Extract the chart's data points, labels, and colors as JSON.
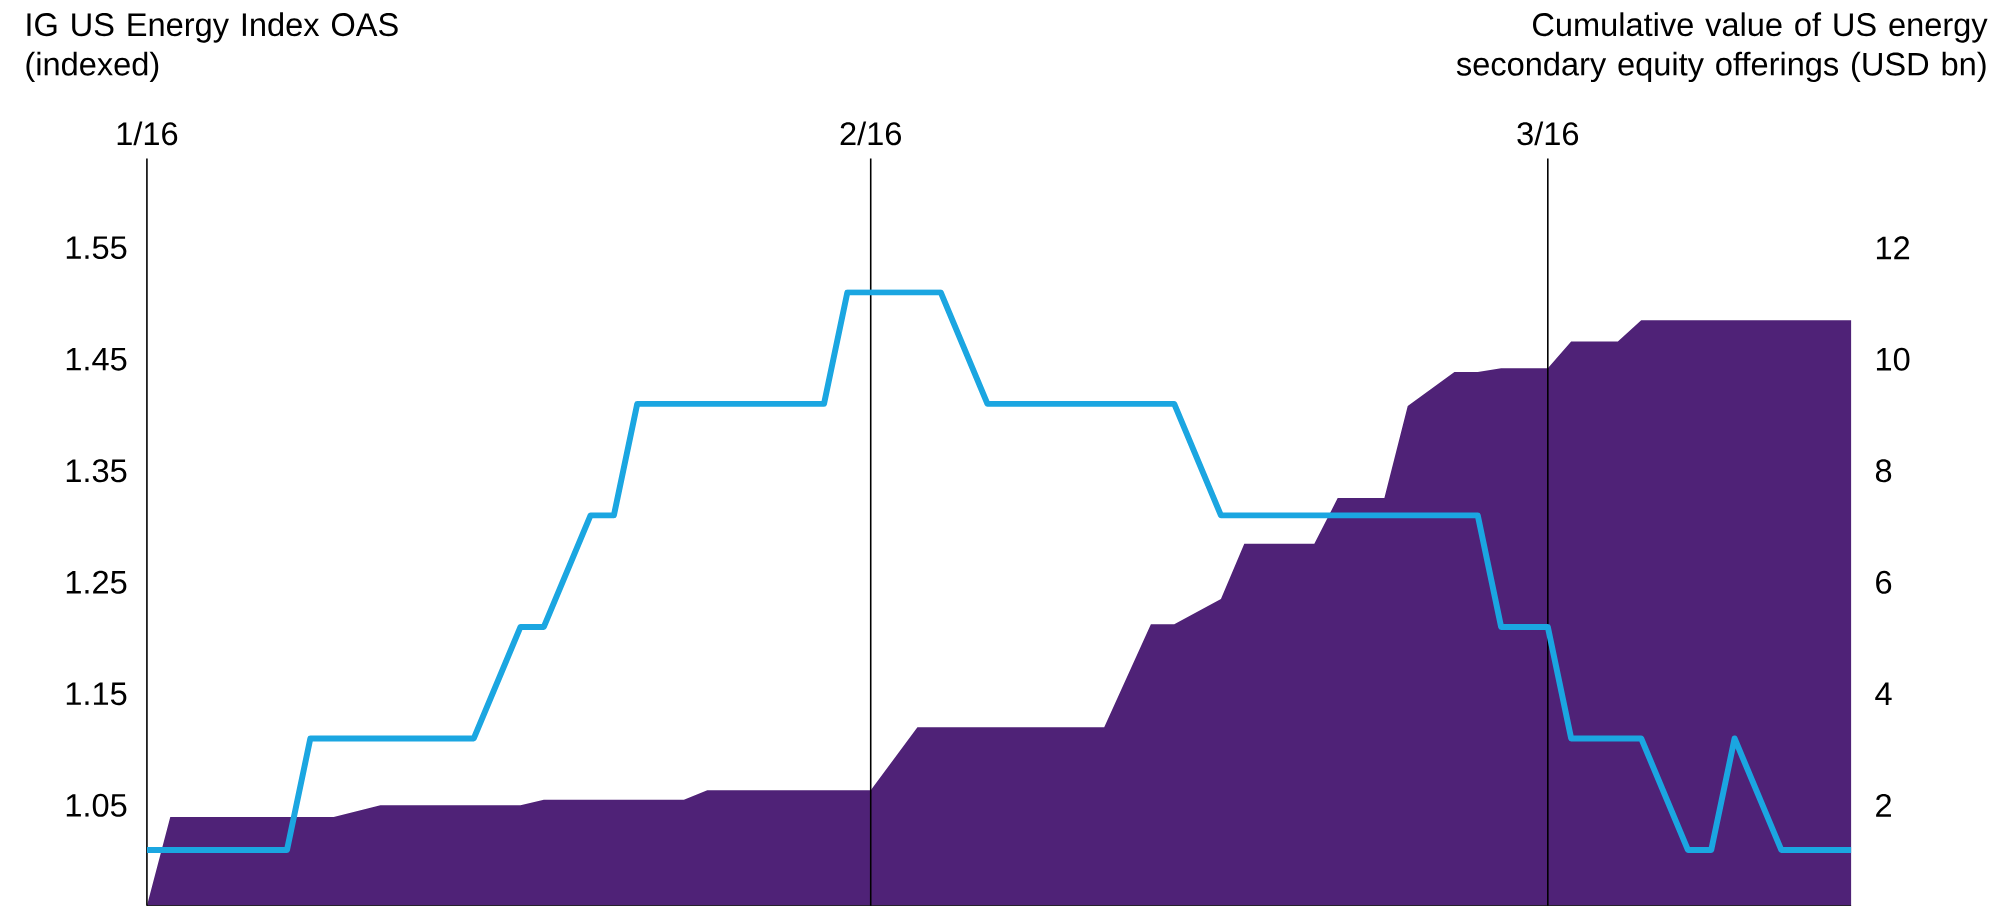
{
  "chart_data": {
    "type": "line",
    "ylabel": "IG US Energy Index OAS (indexed)",
    "y2label": "Cumulative value of US energy secondary equity offerings (USD bn)",
    "xlim": [
      "2016-01-01",
      "2016-03-14"
    ],
    "xticks": [
      {
        "value": "2016-01",
        "label": "1/16"
      },
      {
        "value": "2016-02",
        "label": "2/16"
      },
      {
        "value": "2016-03",
        "label": "3/16"
      }
    ],
    "grid": "x",
    "ylim": [
      0.96,
      1.63
    ],
    "yticks": [
      1.05,
      1.15,
      1.25,
      1.35,
      1.45,
      1.55
    ],
    "y2lim": [
      0.2,
      13.6
    ],
    "y2ticks": [
      2,
      4,
      6,
      8,
      10,
      12
    ],
    "series": [
      {
        "type": "area",
        "axis": "y2",
        "color": "#4f2277",
        "x": [
          "2016-01-01",
          "2016-01-02",
          "2016-01-09",
          "2016-01-11",
          "2016-01-17",
          "2016-01-18",
          "2016-01-24",
          "2016-01-25",
          "2016-02-01",
          "2016-02-03",
          "2016-02-11",
          "2016-02-13",
          "2016-02-14",
          "2016-02-16",
          "2016-02-17",
          "2016-02-20",
          "2016-02-21",
          "2016-02-23",
          "2016-02-24",
          "2016-02-26",
          "2016-02-27",
          "2016-02-28",
          "2016-03-01",
          "2016-03-02",
          "2016-03-04",
          "2016-03-05",
          "2016-03-14"
        ],
        "values": [
          0.2,
          1.79,
          1.79,
          2.0,
          2.0,
          2.1,
          2.1,
          2.27,
          2.27,
          3.4,
          3.4,
          5.25,
          5.25,
          5.7,
          6.69,
          6.69,
          7.51,
          7.51,
          9.16,
          9.77,
          9.77,
          9.84,
          9.84,
          10.32,
          10.32,
          10.7,
          10.7
        ]
      },
      {
        "color": "#1ba6e1",
        "x": [
          "2016-01-01",
          "2016-01-07",
          "2016-01-08",
          "2016-01-15",
          "2016-01-17",
          "2016-01-18",
          "2016-01-20",
          "2016-01-21",
          "2016-01-22",
          "2016-01-30",
          "2016-01-31",
          "2016-02-04",
          "2016-02-06",
          "2016-02-14",
          "2016-02-16",
          "2016-02-27",
          "2016-02-28",
          "2016-03-01",
          "2016-03-02",
          "2016-03-05",
          "2016-03-07",
          "2016-03-08",
          "2016-03-09",
          "2016-03-11",
          "2016-03-14"
        ],
        "values": [
          1.01,
          1.01,
          1.11,
          1.11,
          1.21,
          1.21,
          1.31,
          1.31,
          1.41,
          1.41,
          1.51,
          1.51,
          1.41,
          1.41,
          1.31,
          1.31,
          1.21,
          1.21,
          1.11,
          1.11,
          1.01,
          1.01,
          1.11,
          1.01,
          1.01
        ]
      }
    ]
  }
}
